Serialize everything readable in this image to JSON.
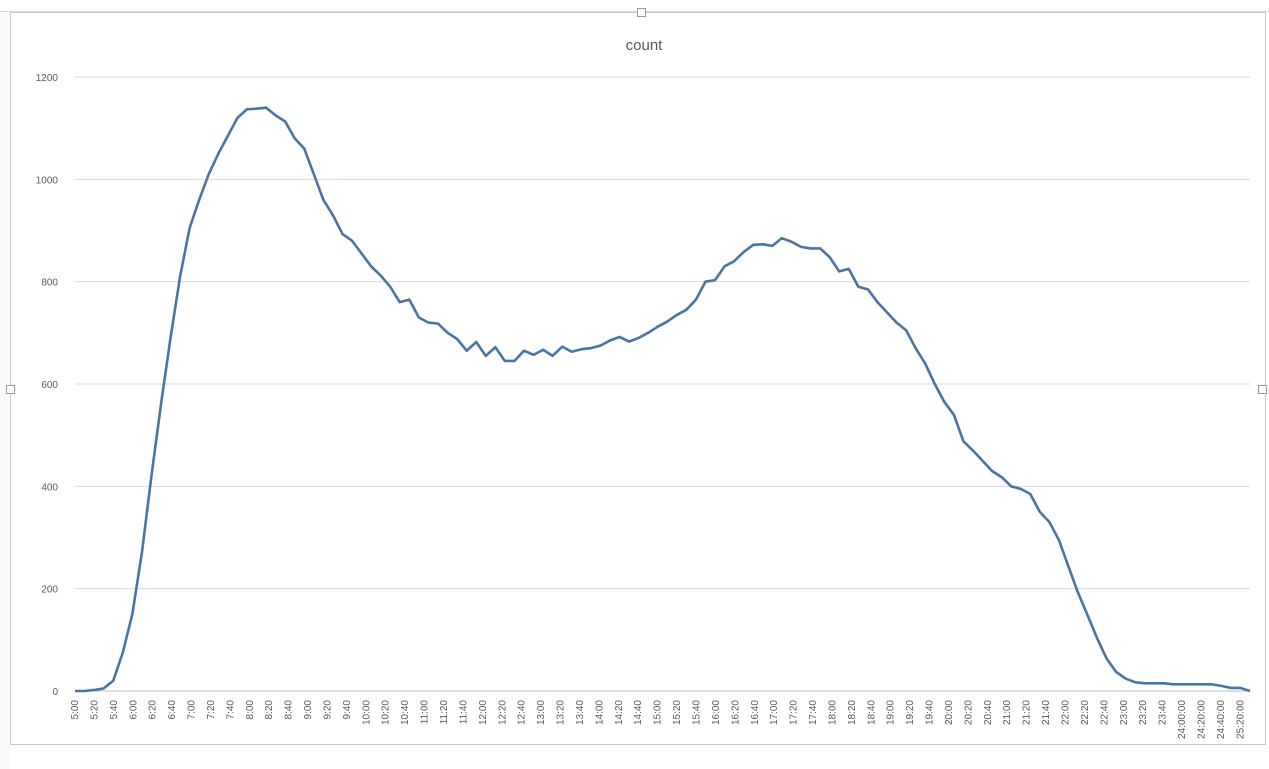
{
  "chart_data": {
    "type": "line",
    "title": "count",
    "xlabel": "",
    "ylabel": "",
    "ylim": [
      0,
      1200
    ],
    "yticks": [
      0,
      200,
      400,
      600,
      800,
      1000,
      1200
    ],
    "grid": true,
    "legend": "none",
    "colors": {
      "line": "#4a74a4",
      "grid": "#d9d9d9",
      "axis": "#bfbfbf",
      "text": "#595959"
    },
    "x_tick_labels": [
      "5:00",
      "5:20",
      "5:40",
      "6:00",
      "6:20",
      "6:40",
      "7:00",
      "7:20",
      "7:40",
      "8:00",
      "8:20",
      "8:40",
      "9:00",
      "9:20",
      "9:40",
      "10:00",
      "10:20",
      "10:40",
      "11:00",
      "11:20",
      "11:40",
      "12:00",
      "12:20",
      "12:40",
      "13:00",
      "13:20",
      "13:40",
      "14:00",
      "14:20",
      "14:40",
      "15:00",
      "15:20",
      "15:40",
      "16:00",
      "16:20",
      "16:40",
      "17:00",
      "17:20",
      "17:40",
      "18:00",
      "18:20",
      "18:40",
      "19:00",
      "19:20",
      "19:40",
      "20:00",
      "20:20",
      "20:40",
      "21:00",
      "21:20",
      "21:40",
      "22:00",
      "22:20",
      "22:40",
      "23:00",
      "23:20",
      "23:40",
      "24:00:00",
      "24:20:00",
      "24:40:00",
      "25:20:00"
    ],
    "series": [
      {
        "values": [
          0,
          0,
          2,
          5,
          20,
          75,
          150,
          270,
          420,
          560,
          690,
          810,
          905,
          960,
          1010,
          1050,
          1085,
          1120,
          1137,
          1138,
          1140,
          1125,
          1113,
          1080,
          1060,
          1010,
          960,
          930,
          893,
          880,
          855,
          830,
          812,
          790,
          760,
          765,
          730,
          720,
          718,
          700,
          688,
          665,
          682,
          655,
          672,
          645,
          645,
          665,
          657,
          667,
          655,
          673,
          663,
          668,
          670,
          675,
          685,
          692,
          683,
          690,
          700,
          712,
          722,
          735,
          745,
          765,
          800,
          803,
          830,
          840,
          858,
          872,
          873,
          870,
          885,
          878,
          868,
          865,
          865,
          848,
          820,
          825,
          790,
          785,
          760,
          740,
          720,
          705,
          670,
          640,
          600,
          565,
          540,
          488,
          470,
          450,
          430,
          418,
          400,
          395,
          385,
          350,
          330,
          295,
          243,
          192,
          148,
          103,
          63,
          37,
          24,
          17,
          15,
          15,
          15,
          13,
          13,
          13,
          13,
          13,
          10,
          6,
          6,
          0
        ]
      }
    ]
  }
}
